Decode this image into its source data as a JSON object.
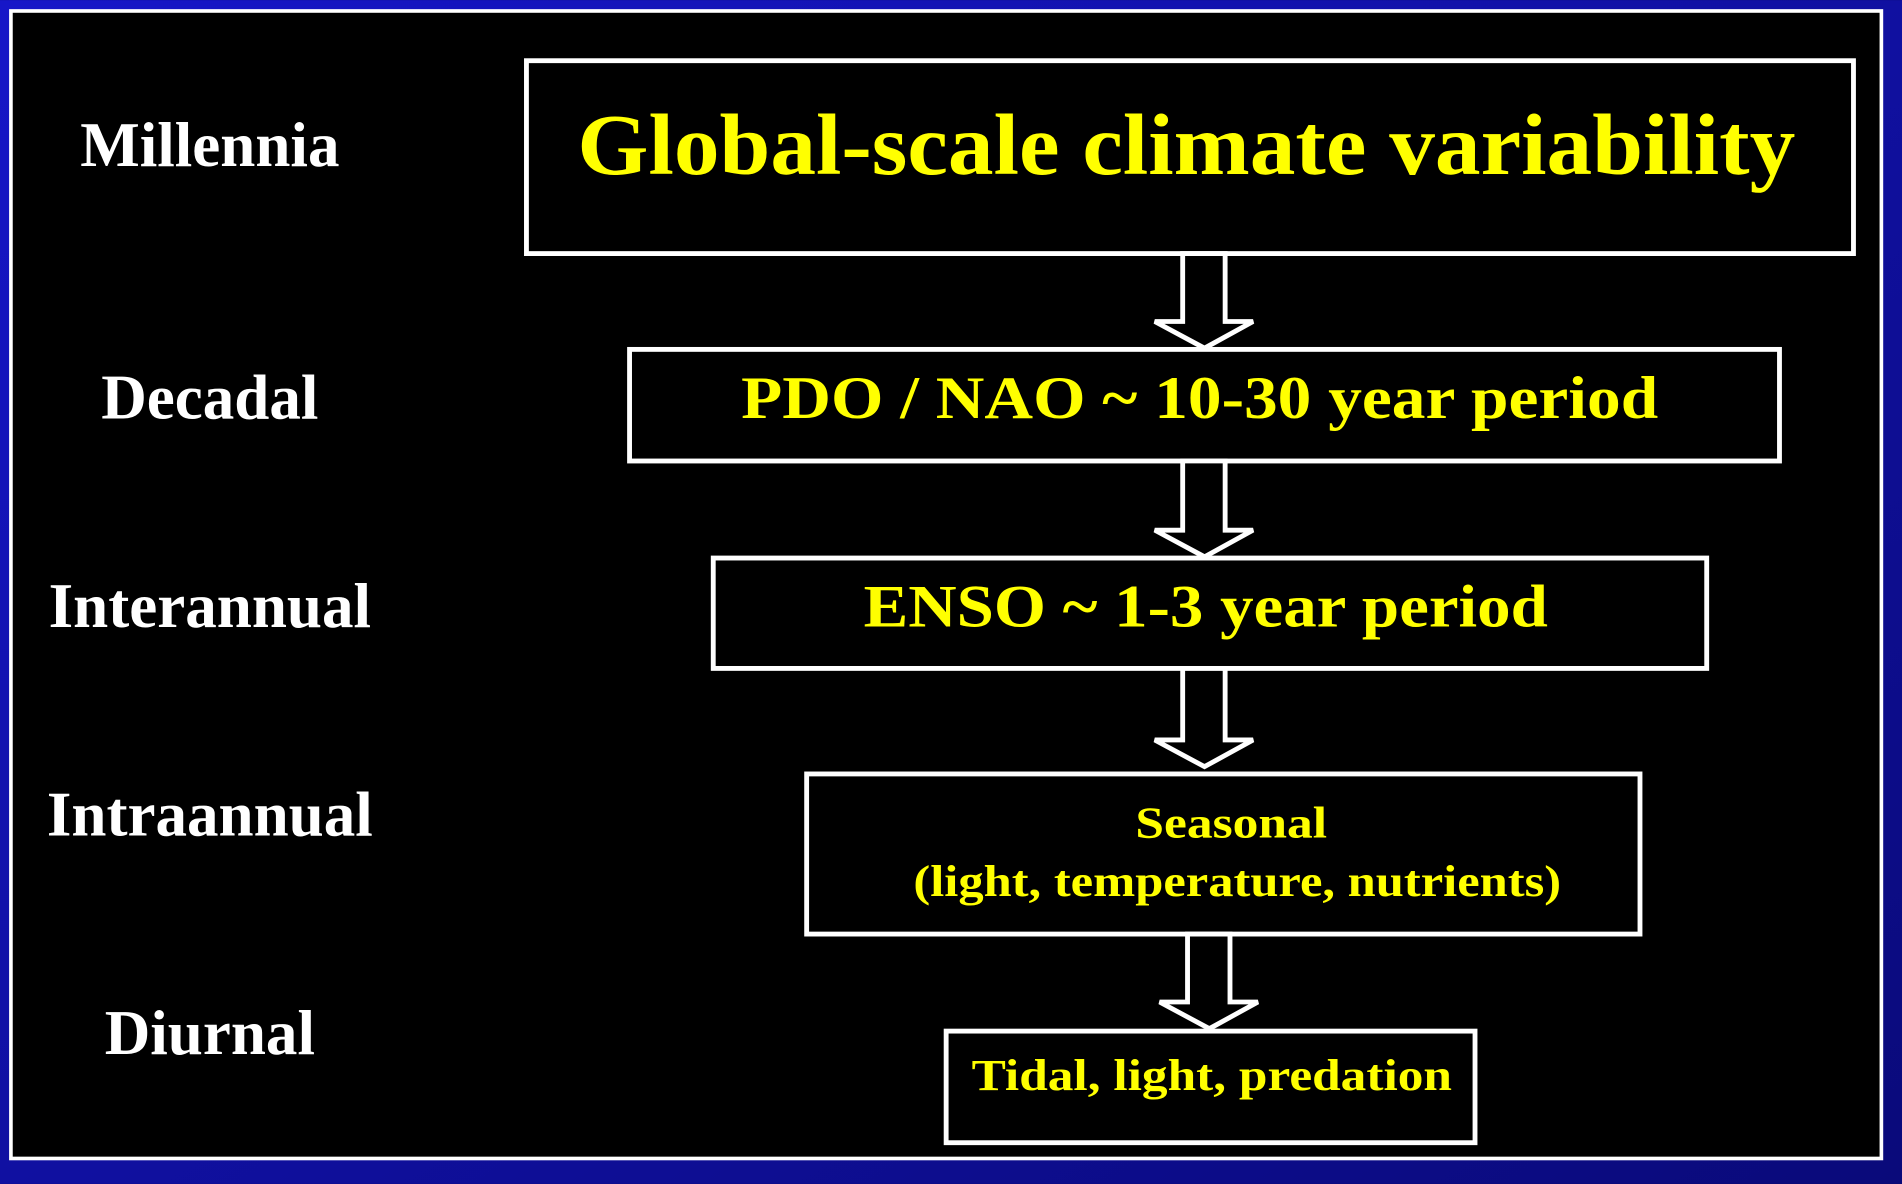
{
  "levels": [
    "Millennia",
    "Decadal",
    "Interannual",
    "Intraannual",
    "Diurnal"
  ],
  "boxes": [
    {
      "lines": [
        "Global-scale climate variability"
      ]
    },
    {
      "lines": [
        "PDO / NAO ~ 10-30 year period"
      ]
    },
    {
      "lines": [
        "ENSO ~ 1-3 year period"
      ]
    },
    {
      "lines": [
        "Seasonal",
        "(light, temperature, nutrients)"
      ]
    },
    {
      "lines": [
        "Tidal, light, predation"
      ]
    }
  ]
}
